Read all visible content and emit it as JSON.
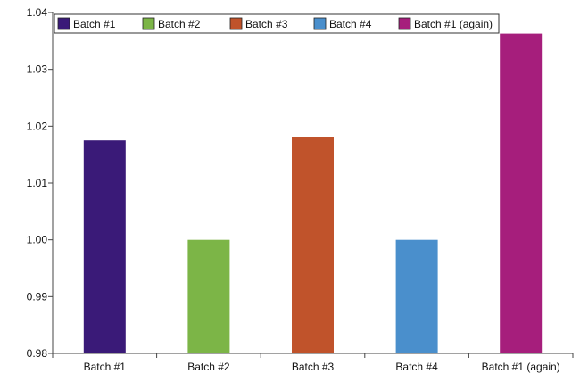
{
  "chart_data": {
    "type": "bar",
    "title": "",
    "xlabel": "",
    "ylabel": "",
    "categories": [
      "Batch #1",
      "Batch #2",
      "Batch #3",
      "Batch #4",
      "Batch #1 (again)"
    ],
    "values": [
      1.0175,
      1.0,
      1.0181,
      1.0,
      1.0363
    ],
    "colors": [
      "#3a1a78",
      "#7cb547",
      "#c0532b",
      "#4a8fcc",
      "#a61e7c"
    ],
    "ylim": [
      0.98,
      1.04
    ],
    "yticks": [
      "0.98",
      "0.99",
      "1.00",
      "1.01",
      "1.02",
      "1.03",
      "1.04"
    ],
    "legend": {
      "position": "top-left",
      "entries": [
        "Batch #1",
        "Batch #2",
        "Batch #3",
        "Batch #4",
        "Batch #1 (again)"
      ]
    },
    "grid": false
  }
}
